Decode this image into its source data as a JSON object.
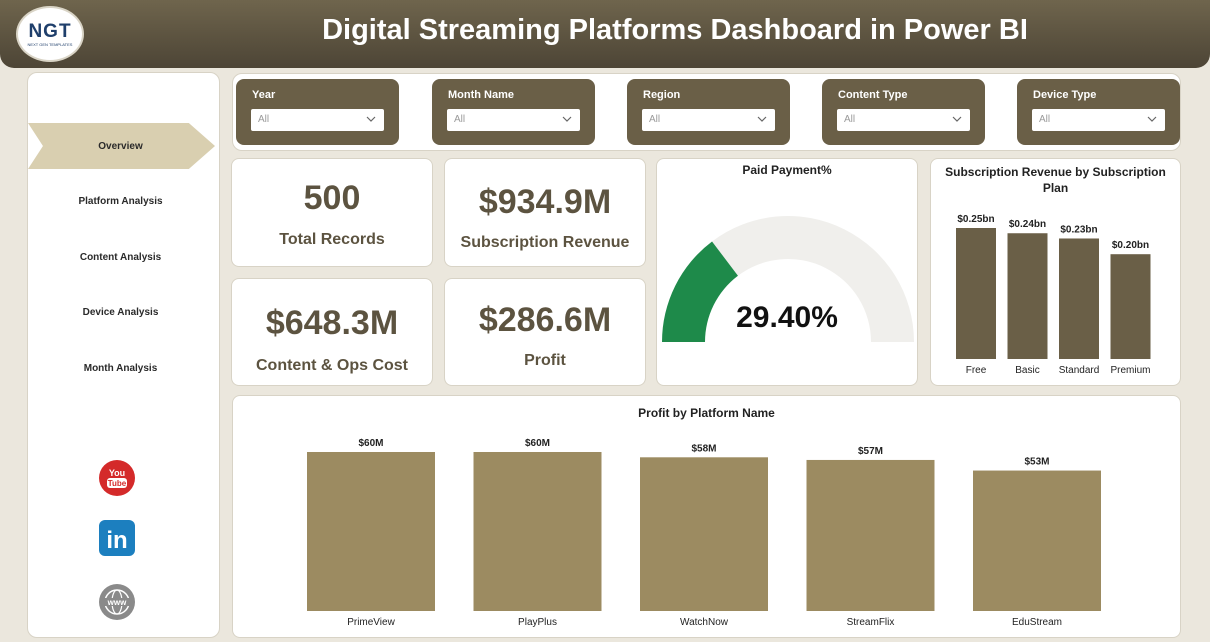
{
  "header": {
    "title": "Digital Streaming Platforms Dashboard in Power BI",
    "logo_text": "NGT",
    "logo_sub": "NEXT GEN TEMPLATES"
  },
  "sidebar": {
    "items": [
      {
        "label": "Overview",
        "active": true
      },
      {
        "label": "Platform Analysis"
      },
      {
        "label": "Content Analysis"
      },
      {
        "label": "Device Analysis"
      },
      {
        "label": "Month Analysis"
      }
    ],
    "social": [
      {
        "icon": "youtube-icon",
        "label": "You Tube"
      },
      {
        "icon": "linkedin-icon",
        "label": "in"
      },
      {
        "icon": "globe-icon",
        "label": "www"
      }
    ]
  },
  "filters": [
    {
      "title": "Year",
      "value": "All"
    },
    {
      "title": "Month Name",
      "value": "All"
    },
    {
      "title": "Region",
      "value": "All"
    },
    {
      "title": "Content Type",
      "value": "All"
    },
    {
      "title": "Device Type",
      "value": "All"
    }
  ],
  "kpis": {
    "total_records": {
      "value": "500",
      "label": "Total Records"
    },
    "subscription_revenue": {
      "value": "$934.9M",
      "label": "Subscription Revenue"
    },
    "content_ops_cost": {
      "value": "$648.3M",
      "label": "Content & Ops Cost"
    },
    "profit": {
      "value": "$286.6M",
      "label": "Profit"
    }
  },
  "gauge": {
    "title": "Paid Payment%",
    "value": 29.4,
    "value_label": "29.40%",
    "fill_color": "#1e8a4a",
    "track_color": "#f0efec"
  },
  "colors": {
    "accent": "#5c5340",
    "bar_dark": "#6a5f47",
    "bar_light": "#9c8b61"
  },
  "chart_data": [
    {
      "type": "bar",
      "title": "Subscription Revenue by Subscription Plan",
      "categories": [
        "Free",
        "Basic",
        "Standard",
        "Premium"
      ],
      "values": [
        0.25,
        0.24,
        0.23,
        0.2
      ],
      "data_labels": [
        "$0.25bn",
        "$0.24bn",
        "$0.23bn",
        "$0.20bn"
      ],
      "ylim": [
        0,
        0.25
      ],
      "grid": false
    },
    {
      "type": "bar",
      "title": "Profit by Platform Name",
      "categories": [
        "PrimeView",
        "PlayPlus",
        "WatchNow",
        "StreamFlix",
        "EduStream"
      ],
      "values": [
        60,
        60,
        58,
        57,
        53
      ],
      "data_labels": [
        "$60M",
        "$60M",
        "$58M",
        "$57M",
        "$53M"
      ],
      "ylim": [
        0,
        60
      ],
      "grid": false
    }
  ]
}
